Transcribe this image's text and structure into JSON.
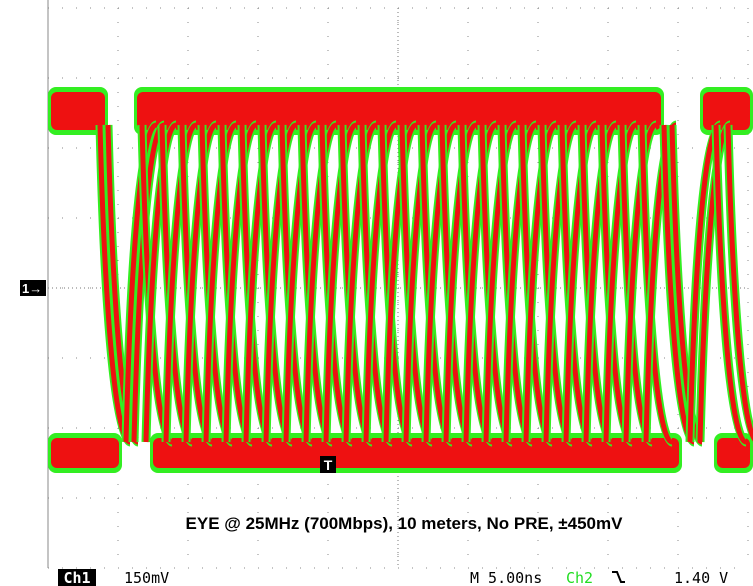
{
  "screen": {
    "channel_marker": "1→",
    "trigger_marker": "T",
    "annotation": "EYE @ 25MHz (700Mbps), 10 meters, No PRE, ±450mV"
  },
  "status_bar": {
    "channel": "Ch1",
    "scale": "150mV",
    "timebase": "M 5.00ns",
    "trigger_source": "Ch2",
    "trigger_level": "1.40 V"
  }
}
